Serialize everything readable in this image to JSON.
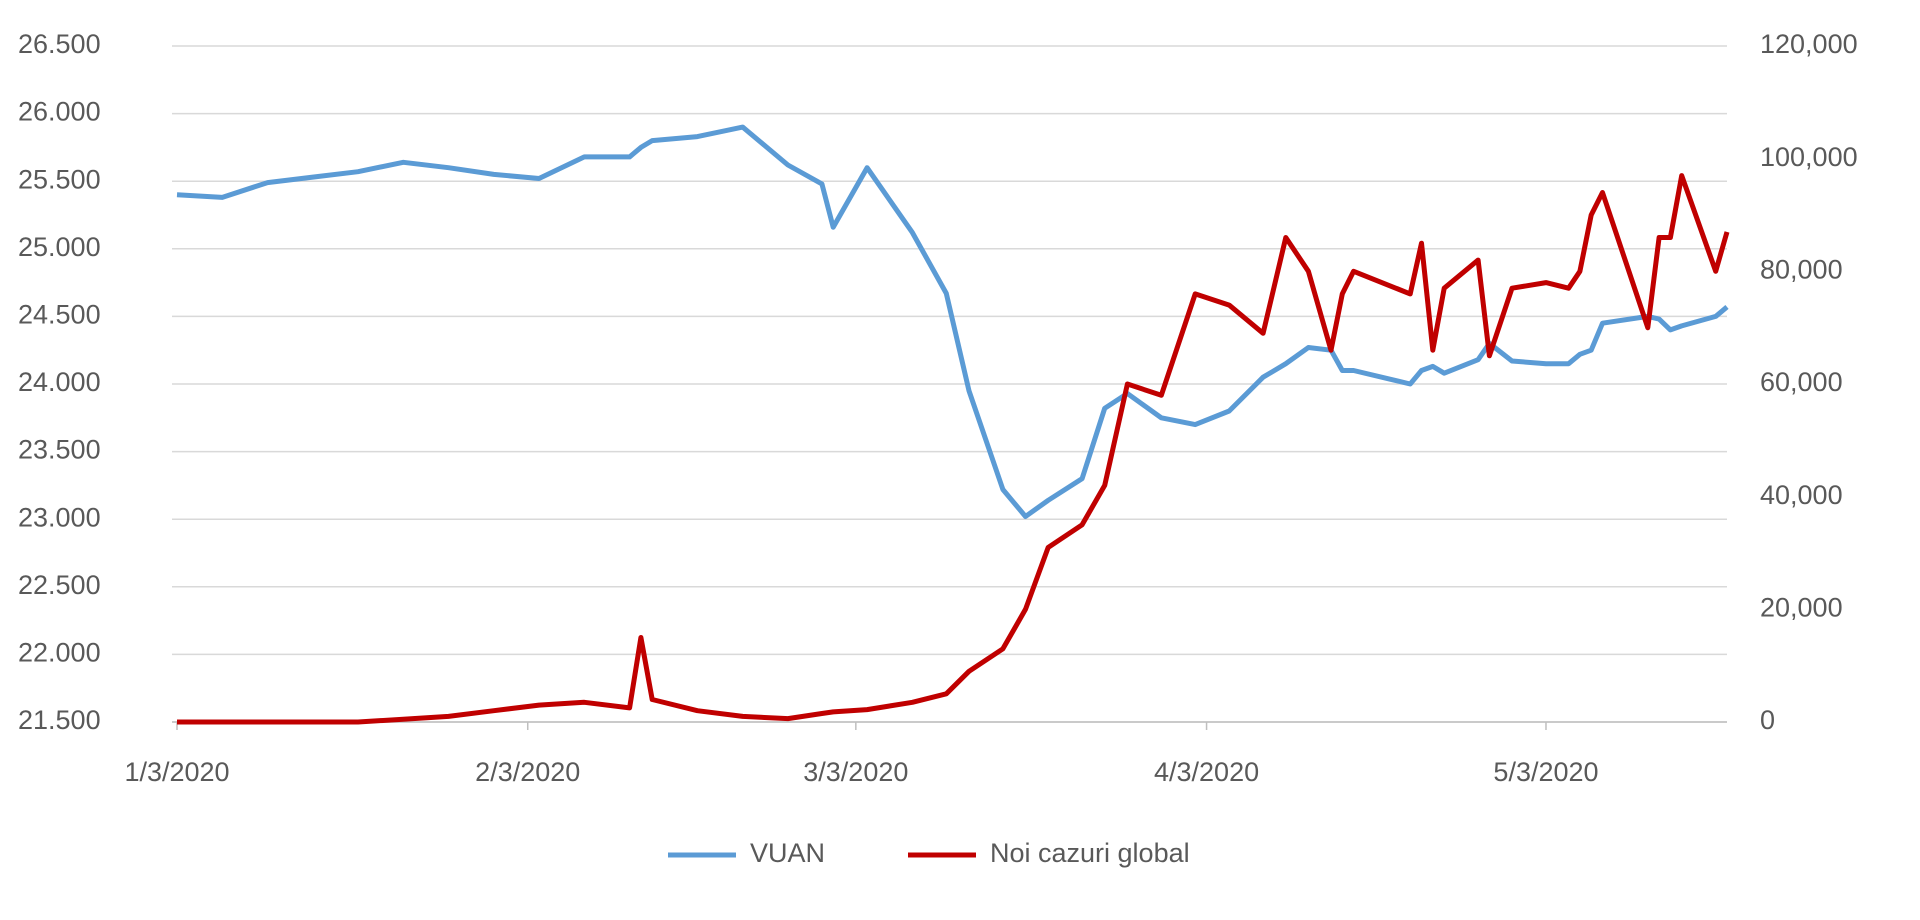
{
  "chart_data": {
    "type": "line",
    "x": [
      "2020-01-03",
      "2020-01-07",
      "2020-01-11",
      "2020-01-15",
      "2020-01-19",
      "2020-01-23",
      "2020-01-27",
      "2020-01-31",
      "2020-02-04",
      "2020-02-08",
      "2020-02-12",
      "2020-02-13",
      "2020-02-14",
      "2020-02-18",
      "2020-02-22",
      "2020-02-26",
      "2020-02-29",
      "2020-03-01",
      "2020-03-04",
      "2020-03-08",
      "2020-03-11",
      "2020-03-13",
      "2020-03-16",
      "2020-03-18",
      "2020-03-20",
      "2020-03-23",
      "2020-03-25",
      "2020-03-27",
      "2020-03-30",
      "2020-04-02",
      "2020-04-05",
      "2020-04-08",
      "2020-04-10",
      "2020-04-12",
      "2020-04-14",
      "2020-04-15",
      "2020-04-16",
      "2020-04-21",
      "2020-04-22",
      "2020-04-23",
      "2020-04-24",
      "2020-04-27",
      "2020-04-28",
      "2020-04-30",
      "2020-05-03",
      "2020-05-05",
      "2020-05-06",
      "2020-05-07",
      "2020-05-08",
      "2020-05-12",
      "2020-05-13",
      "2020-05-14",
      "2020-05-15",
      "2020-05-18",
      "2020-05-19"
    ],
    "series": [
      {
        "name": "VUAN",
        "color": "#5b9bd5",
        "values": [
          25.4,
          25.38,
          25.49,
          25.53,
          25.57,
          25.64,
          25.6,
          25.55,
          25.52,
          25.68,
          25.68,
          25.75,
          25.8,
          25.83,
          25.9,
          25.62,
          25.48,
          25.16,
          25.6,
          25.12,
          24.67,
          23.95,
          23.22,
          23.02,
          23.14,
          23.3,
          23.82,
          23.93,
          23.75,
          23.7,
          23.8,
          24.05,
          24.15,
          24.27,
          24.25,
          24.1,
          24.1,
          24.0,
          24.1,
          24.13,
          24.08,
          24.18,
          24.3,
          24.17,
          24.15,
          24.15,
          24.22,
          24.25,
          24.45,
          24.5,
          24.48,
          24.4,
          24.43,
          24.5,
          24.57
        ]
      },
      {
        "name": "Noi cazuri global",
        "color": "#c00000",
        "axis": "y2",
        "values": [
          0,
          0,
          0,
          0,
          0,
          500,
          1000,
          2000,
          3000,
          3500,
          2500,
          15000,
          4000,
          2000,
          1000,
          600,
          1500,
          1800,
          2200,
          3500,
          5000,
          9000,
          13000,
          20000,
          31000,
          35000,
          42000,
          60000,
          58000,
          76000,
          74000,
          69000,
          86000,
          80000,
          66000,
          76000,
          80000,
          76000,
          85000,
          66000,
          77000,
          82000,
          65000,
          77000,
          78000,
          77000,
          80000,
          90000,
          94000,
          70000,
          86000,
          86000,
          97000,
          80000,
          87000
        ]
      }
    ],
    "xlim": [
      "2020-01-03",
      "2020-05-19"
    ],
    "xticks": [
      {
        "value": "2020-01-03",
        "label": "1/3/2020"
      },
      {
        "value": "2020-02-03",
        "label": "2/3/2020"
      },
      {
        "value": "2020-03-03",
        "label": "3/3/2020"
      },
      {
        "value": "2020-04-03",
        "label": "4/3/2020"
      },
      {
        "value": "2020-05-03",
        "label": "5/3/2020"
      }
    ],
    "ylim": [
      21.5,
      26.5
    ],
    "yticks": [
      {
        "value": 21.5,
        "label": "21.500"
      },
      {
        "value": 22,
        "label": "22.000"
      },
      {
        "value": 22.5,
        "label": "22.500"
      },
      {
        "value": 23,
        "label": "23.000"
      },
      {
        "value": 23.5,
        "label": "23.500"
      },
      {
        "value": 24,
        "label": "24.000"
      },
      {
        "value": 24.5,
        "label": "24.500"
      },
      {
        "value": 25,
        "label": "25.000"
      },
      {
        "value": 25.5,
        "label": "25.500"
      },
      {
        "value": 26,
        "label": "26.000"
      },
      {
        "value": 26.5,
        "label": "26.500"
      }
    ],
    "y2lim": [
      0,
      120000
    ],
    "y2ticks": [
      0,
      {
        "value": 20000,
        "label": "20,000"
      },
      {
        "value": 40000,
        "label": "40,000"
      },
      {
        "value": 60000,
        "label": "60,000"
      },
      {
        "value": 80000,
        "label": "80,000"
      },
      {
        "value": 100000,
        "label": "100,000"
      },
      {
        "value": 120000,
        "label": "120,000"
      }
    ],
    "grid": true,
    "legend": "bottom"
  }
}
